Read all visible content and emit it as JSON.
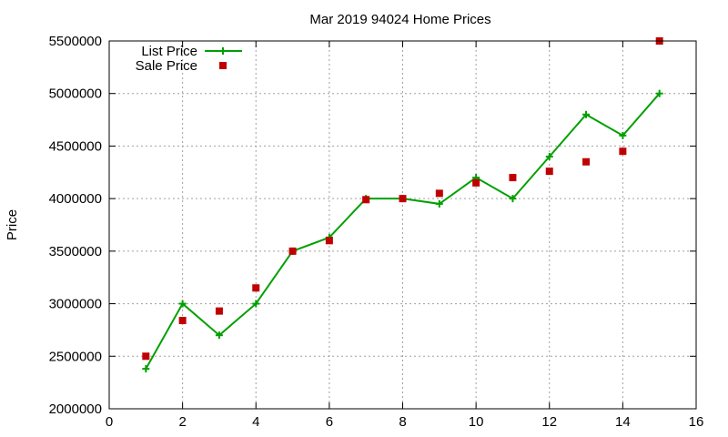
{
  "chart_data": {
    "type": "line",
    "title": "Mar 2019 94024 Home Prices",
    "xlabel": "",
    "ylabel": "Price",
    "xlim": [
      0,
      16
    ],
    "ylim": [
      2000000,
      5500000
    ],
    "xticks": [
      0,
      2,
      4,
      6,
      8,
      10,
      12,
      14,
      16
    ],
    "yticks": [
      2000000,
      2500000,
      3000000,
      3500000,
      4000000,
      4500000,
      5000000,
      5500000
    ],
    "grid": true,
    "legend_position": "top-left",
    "series": [
      {
        "name": "List Price",
        "style": "line-with-plus-markers",
        "color": "#00a000",
        "x": [
          1,
          2,
          3,
          4,
          5,
          6,
          7,
          8,
          9,
          10,
          11,
          12,
          13,
          14,
          15
        ],
        "y": [
          2380000,
          3000000,
          2700000,
          3000000,
          3500000,
          3630000,
          4000000,
          4000000,
          3950000,
          4200000,
          4000000,
          4400000,
          4800000,
          4600000,
          5000000
        ]
      },
      {
        "name": "Sale Price",
        "style": "square-markers",
        "color": "#c00000",
        "x": [
          1,
          2,
          3,
          4,
          5,
          6,
          7,
          8,
          9,
          10,
          11,
          12,
          13,
          14,
          15
        ],
        "y": [
          2500000,
          2840000,
          2930000,
          3150000,
          3500000,
          3600000,
          3990000,
          4000000,
          4050000,
          4150000,
          4200000,
          4260000,
          4350000,
          4450000,
          5500000
        ]
      }
    ]
  }
}
